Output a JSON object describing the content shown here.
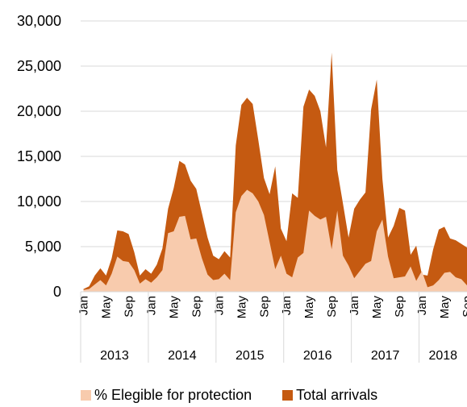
{
  "chart_data": {
    "type": "area",
    "title": "",
    "xlabel": "",
    "ylabel": "",
    "ylim": [
      0,
      30000
    ],
    "yticks": [
      "0",
      "5,000",
      "10,000",
      "15,000",
      "20,000",
      "25,000",
      "30,000"
    ],
    "yticks_values": [
      0,
      5000,
      10000,
      15000,
      20000,
      25000,
      30000
    ],
    "grid": "horizontal",
    "legend_position": "bottom",
    "month_labels": [
      "Jan",
      "May",
      "Sep"
    ],
    "years": [
      "2013",
      "2014",
      "2015",
      "2016",
      "2017",
      "2018"
    ],
    "x_start": "2013-01",
    "x_end": "2018-09",
    "series": [
      {
        "name": "% Elegible for protection",
        "color": "#F8CBAD",
        "values": [
          200,
          300,
          800,
          1300,
          700,
          2000,
          3900,
          3400,
          3300,
          2400,
          900,
          1400,
          1000,
          1600,
          2400,
          6500,
          6700,
          8300,
          8400,
          5800,
          5900,
          3700,
          1900,
          1300,
          1400,
          2000,
          1300,
          8800,
          10600,
          11300,
          10900,
          10000,
          8500,
          5500,
          2500,
          4000,
          2000,
          1600,
          3800,
          4300,
          9000,
          8400,
          8000,
          8300,
          4700,
          9000,
          4000,
          2900,
          1500,
          2300,
          3100,
          3400,
          6700,
          8000,
          3900,
          1500,
          1600,
          1700,
          2800,
          1200,
          2300,
          500,
          700,
          1300,
          2100,
          2200,
          1600,
          1400,
          700
        ]
      },
      {
        "name": "Total arrivals",
        "color": "#C55A11",
        "values": [
          300,
          600,
          1800,
          2600,
          1800,
          3700,
          6800,
          6700,
          6400,
          4400,
          1800,
          2500,
          2000,
          3000,
          4800,
          9200,
          11500,
          14500,
          14100,
          12300,
          11400,
          8700,
          6000,
          4000,
          3600,
          4500,
          3800,
          16200,
          20700,
          21500,
          20800,
          16800,
          12600,
          10800,
          13900,
          7000,
          5600,
          10900,
          10400,
          20500,
          22400,
          21700,
          20000,
          16000,
          26500,
          13500,
          9800,
          6000,
          9200,
          10200,
          11000,
          20200,
          23500,
          12500,
          6000,
          7300,
          9300,
          9000,
          4100,
          5100,
          1900,
          1800,
          4700,
          6900,
          7200,
          5900,
          5700,
          5300,
          4900
        ]
      }
    ]
  }
}
